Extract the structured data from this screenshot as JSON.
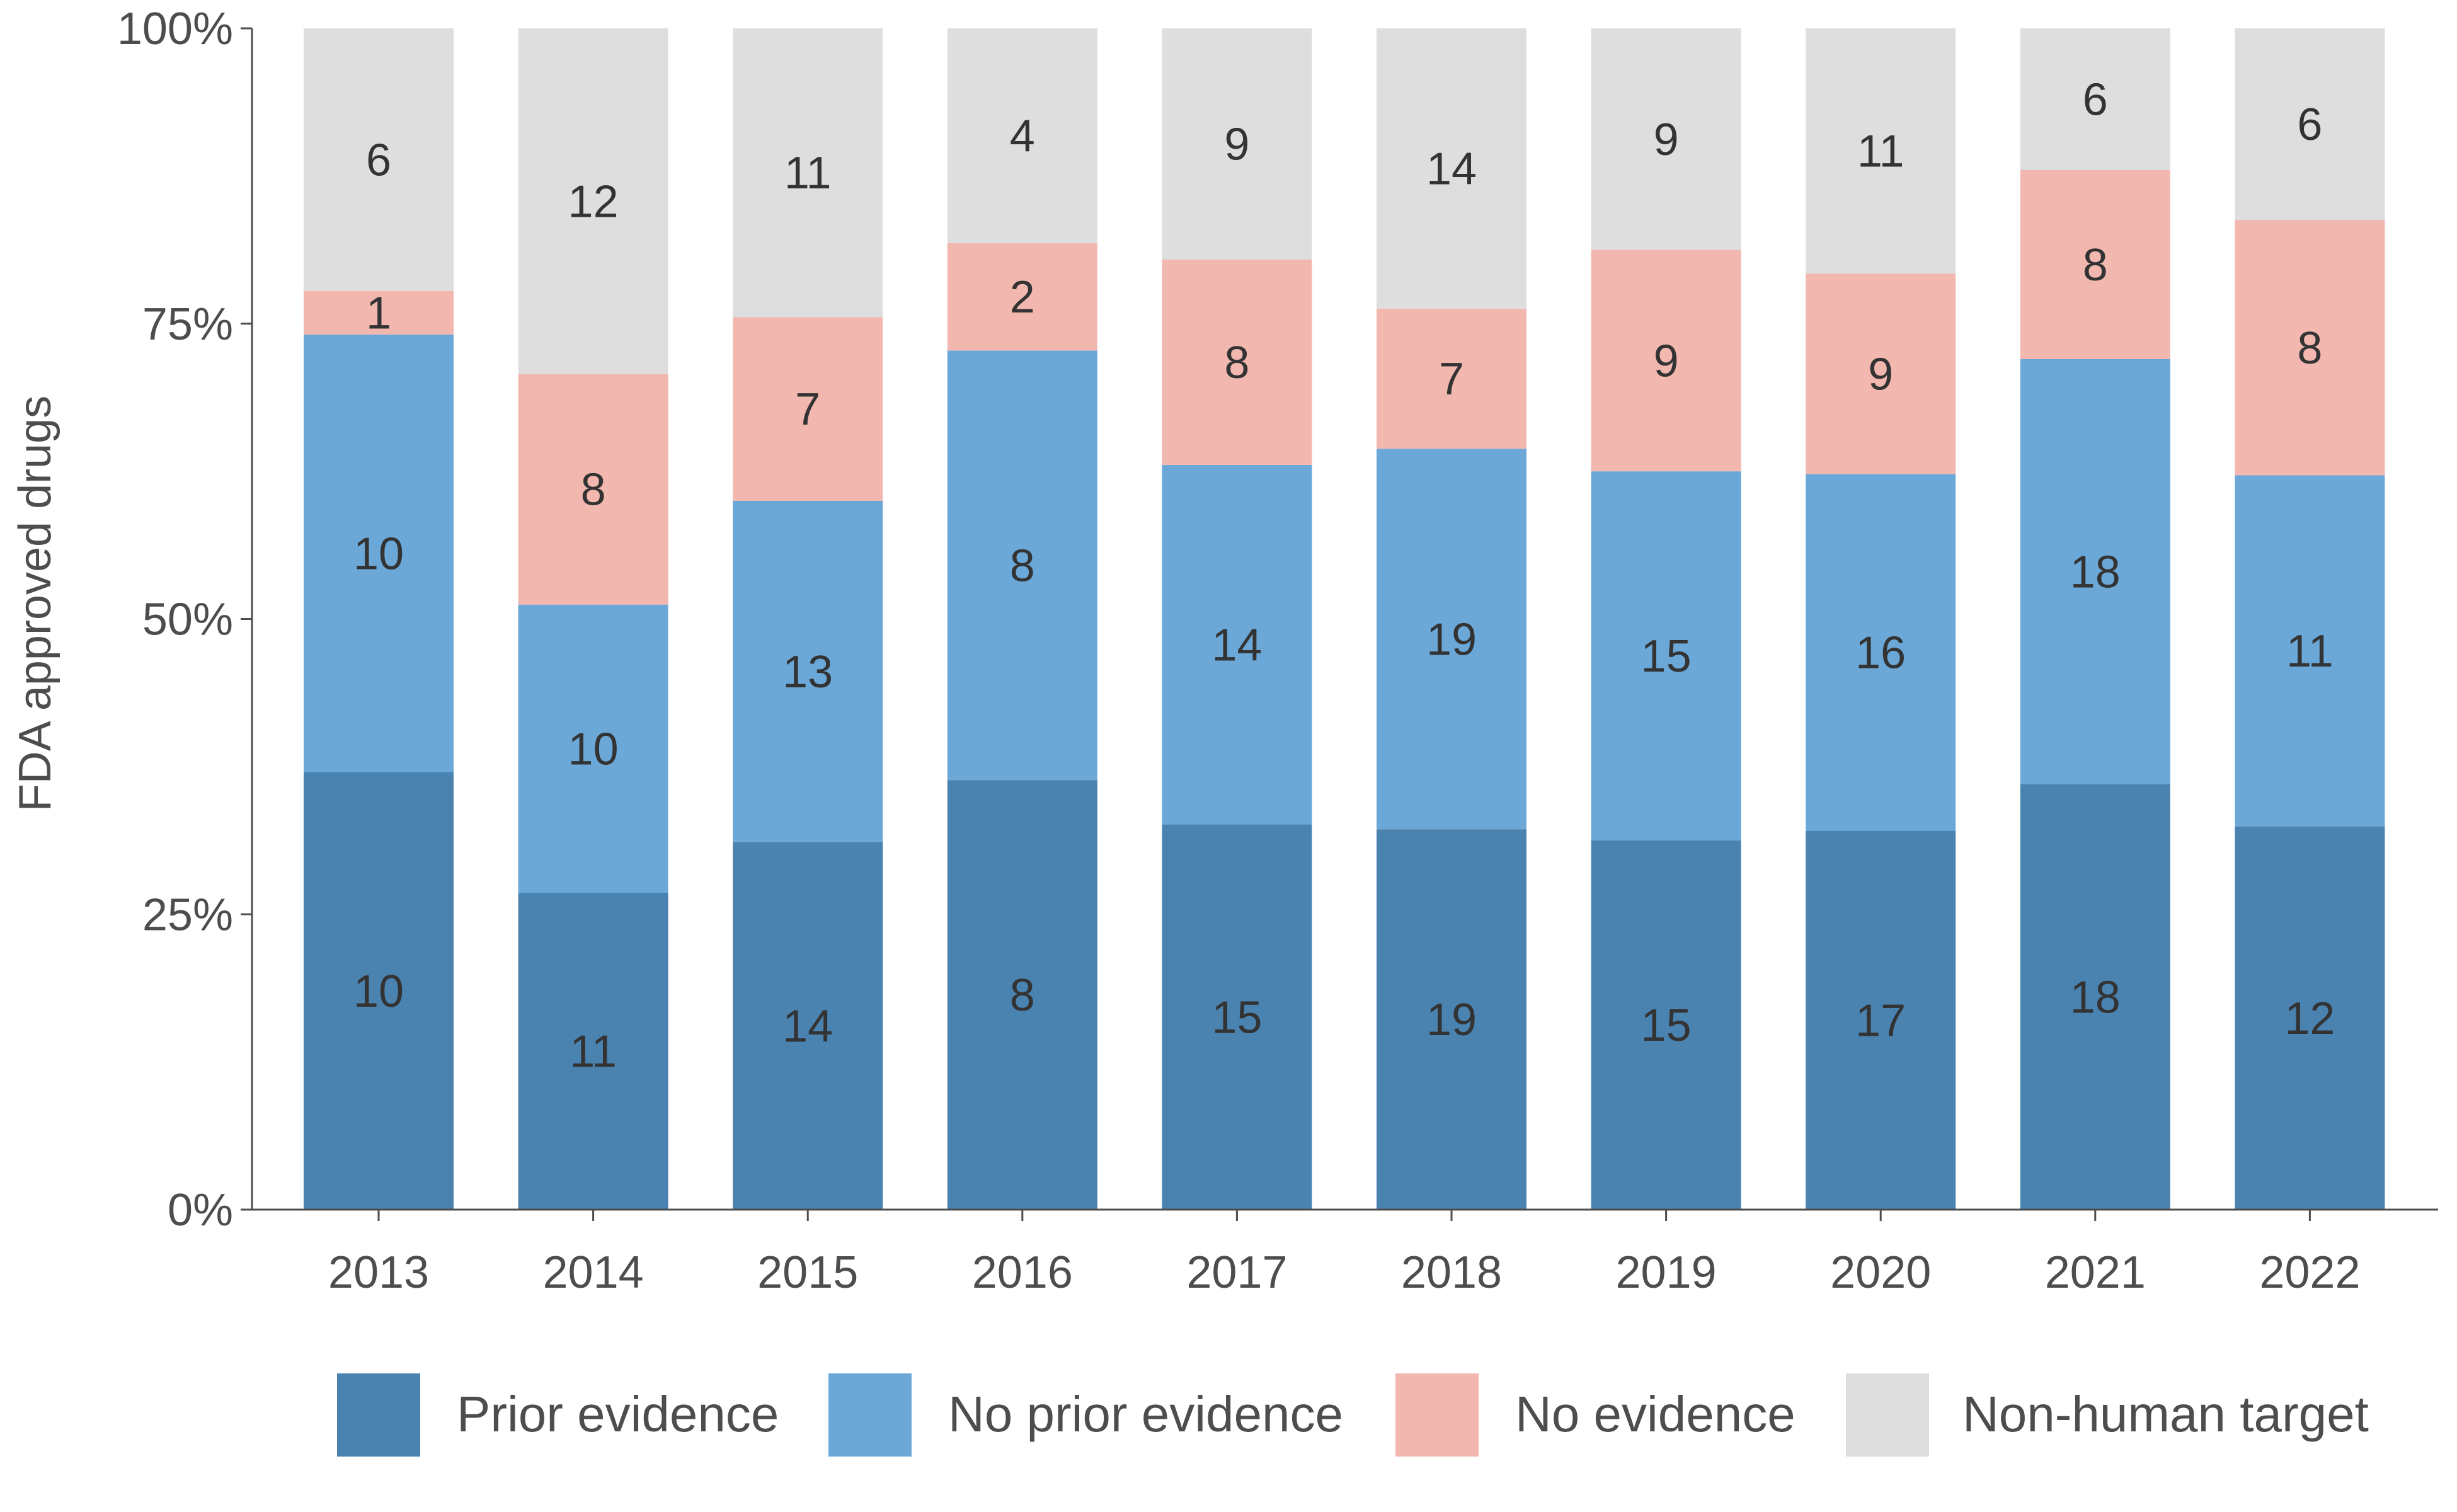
{
  "chart_data": {
    "type": "bar",
    "stacked": true,
    "normalized": true,
    "ylabel": "FDA approved drugs",
    "xlabel": "",
    "ylim": [
      0,
      1
    ],
    "y_ticks": [
      {
        "value": 0,
        "label": "0%"
      },
      {
        "value": 0.25,
        "label": "25%"
      },
      {
        "value": 0.5,
        "label": "50%"
      },
      {
        "value": 0.75,
        "label": "75%"
      },
      {
        "value": 1,
        "label": "100%"
      }
    ],
    "categories": [
      "2013",
      "2014",
      "2015",
      "2016",
      "2017",
      "2018",
      "2019",
      "2020",
      "2021",
      "2022"
    ],
    "series": [
      {
        "name": "Prior evidence",
        "color": "#4a82b0",
        "values": [
          10,
          11,
          14,
          8,
          15,
          19,
          15,
          17,
          18,
          12
        ]
      },
      {
        "name": "No prior evidence",
        "color": "#6ba8d8",
        "values": [
          10,
          10,
          13,
          8,
          14,
          19,
          15,
          16,
          18,
          11
        ]
      },
      {
        "name": "No evidence",
        "color": "#f2b8b0",
        "values": [
          1,
          8,
          7,
          2,
          8,
          7,
          9,
          9,
          8,
          8
        ]
      },
      {
        "name": "Non-human target",
        "color": "#dedede",
        "values": [
          6,
          12,
          11,
          4,
          9,
          14,
          9,
          11,
          6,
          6
        ]
      }
    ],
    "grid": false,
    "legend_position": "bottom"
  }
}
